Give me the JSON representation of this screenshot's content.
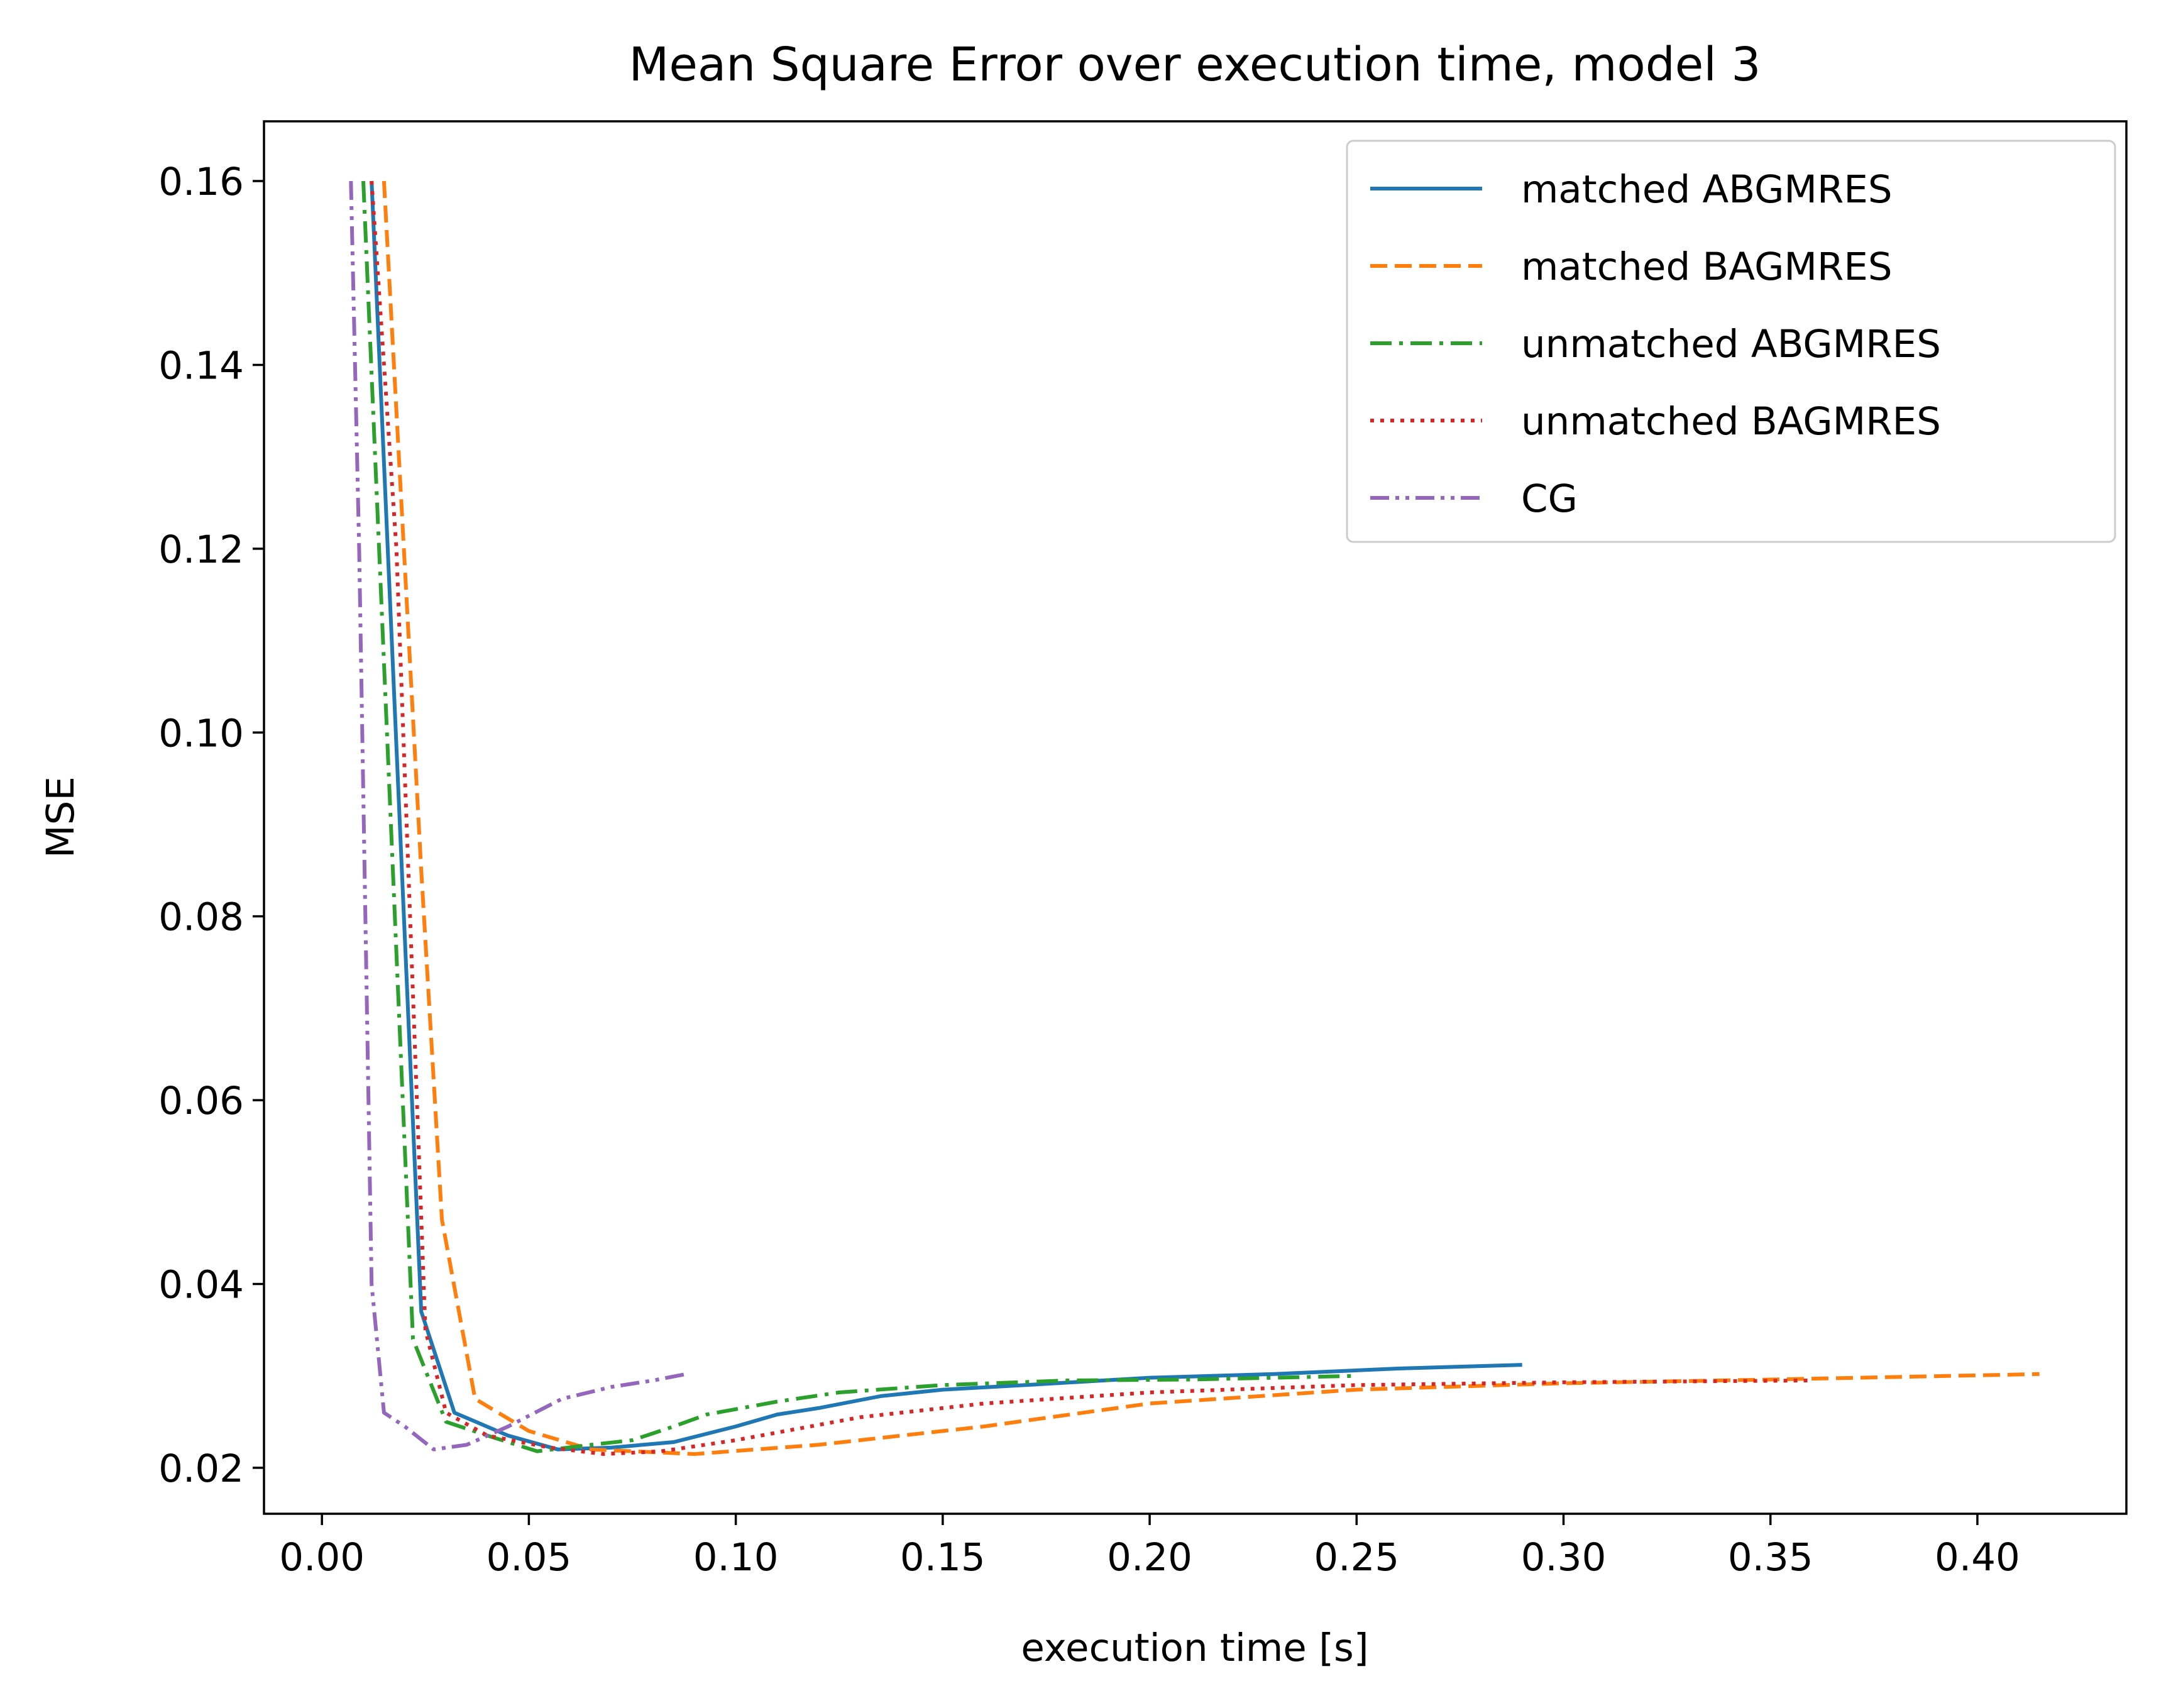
{
  "chart_data": {
    "type": "line",
    "title": "Mean Square Error over execution time, model 3",
    "xlabel": "execution time [s]",
    "ylabel": "MSE",
    "xlim": [
      -0.014,
      0.436
    ],
    "ylim": [
      0.015,
      0.1665
    ],
    "x_ticks": [
      0.0,
      0.05,
      0.1,
      0.15,
      0.2,
      0.25,
      0.3,
      0.35,
      0.4
    ],
    "x_tick_labels": [
      "0.00",
      "0.05",
      "0.10",
      "0.15",
      "0.20",
      "0.25",
      "0.30",
      "0.35",
      "0.40"
    ],
    "y_ticks": [
      0.02,
      0.04,
      0.06,
      0.08,
      0.1,
      0.12,
      0.14,
      0.16
    ],
    "y_tick_labels": [
      "0.02",
      "0.04",
      "0.06",
      "0.08",
      "0.10",
      "0.12",
      "0.14",
      "0.16"
    ],
    "grid": false,
    "legend_position": "top-right",
    "series": [
      {
        "name": "matched ABGMRES",
        "color": "#1f77b4",
        "dash": "solid",
        "x": [
          0.012,
          0.024,
          0.032,
          0.045,
          0.057,
          0.07,
          0.085,
          0.1,
          0.11,
          0.12,
          0.135,
          0.15,
          0.17,
          0.2,
          0.23,
          0.26,
          0.29
        ],
        "y": [
          0.16,
          0.037,
          0.026,
          0.0235,
          0.022,
          0.0222,
          0.0228,
          0.0245,
          0.0258,
          0.0265,
          0.0278,
          0.0285,
          0.029,
          0.0298,
          0.0302,
          0.0308,
          0.0312
        ]
      },
      {
        "name": "matched BAGMRES",
        "color": "#ff7f0e",
        "dash": "dashed",
        "x": [
          0.015,
          0.024,
          0.029,
          0.037,
          0.05,
          0.065,
          0.09,
          0.12,
          0.16,
          0.2,
          0.25,
          0.3,
          0.35,
          0.415
        ],
        "y": [
          0.16,
          0.085,
          0.047,
          0.0275,
          0.024,
          0.022,
          0.0215,
          0.0225,
          0.0245,
          0.027,
          0.0285,
          0.0292,
          0.0296,
          0.0302
        ]
      },
      {
        "name": "unmatched ABGMRES",
        "color": "#2ca02c",
        "dash": "dashdot",
        "x": [
          0.01,
          0.02,
          0.022,
          0.03,
          0.04,
          0.052,
          0.065,
          0.075,
          0.085,
          0.093,
          0.11,
          0.125,
          0.15,
          0.18,
          0.21,
          0.25
        ],
        "y": [
          0.16,
          0.055,
          0.034,
          0.025,
          0.0235,
          0.0218,
          0.0225,
          0.023,
          0.0245,
          0.0258,
          0.0272,
          0.0282,
          0.029,
          0.0295,
          0.0296,
          0.03
        ]
      },
      {
        "name": "unmatched BAGMRES",
        "color": "#d62728",
        "dash": "dotted",
        "x": [
          0.012,
          0.018,
          0.025,
          0.03,
          0.04,
          0.055,
          0.068,
          0.082,
          0.1,
          0.13,
          0.16,
          0.2,
          0.25,
          0.3,
          0.36
        ],
        "y": [
          0.16,
          0.12,
          0.035,
          0.026,
          0.0235,
          0.0222,
          0.0215,
          0.0218,
          0.023,
          0.0255,
          0.027,
          0.0282,
          0.029,
          0.0293,
          0.0295
        ]
      },
      {
        "name": "CG",
        "color": "#9467bd",
        "dash": "dashdotdot",
        "x": [
          0.007,
          0.009,
          0.012,
          0.015,
          0.02,
          0.027,
          0.035,
          0.045,
          0.058,
          0.07,
          0.08,
          0.088
        ],
        "y": [
          0.16,
          0.12,
          0.04,
          0.026,
          0.0245,
          0.022,
          0.0225,
          0.0245,
          0.0275,
          0.0288,
          0.0295,
          0.0302
        ]
      }
    ]
  }
}
